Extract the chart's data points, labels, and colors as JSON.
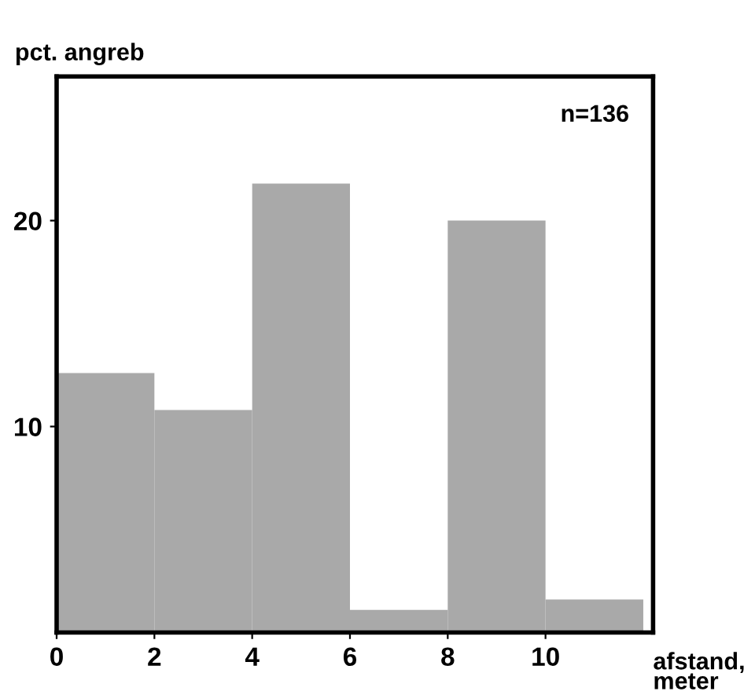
{
  "chart_data": {
    "type": "histogram",
    "ylabel": "pct. angreb",
    "xlabel": "afstand,\nmeter",
    "annotations": [
      "n=136"
    ],
    "bins": [
      0,
      2,
      4,
      6,
      8,
      10,
      12
    ],
    "values": [
      12.6,
      10.8,
      21.8,
      1.1,
      20.0,
      1.6
    ],
    "color": "#a9a9a9",
    "xlim": [
      0,
      12.2
    ],
    "ylim": [
      0,
      27
    ],
    "xticks": [
      0,
      2,
      4,
      6,
      8,
      10
    ],
    "yticks": [
      10,
      20
    ],
    "grid": false,
    "legend": false
  }
}
